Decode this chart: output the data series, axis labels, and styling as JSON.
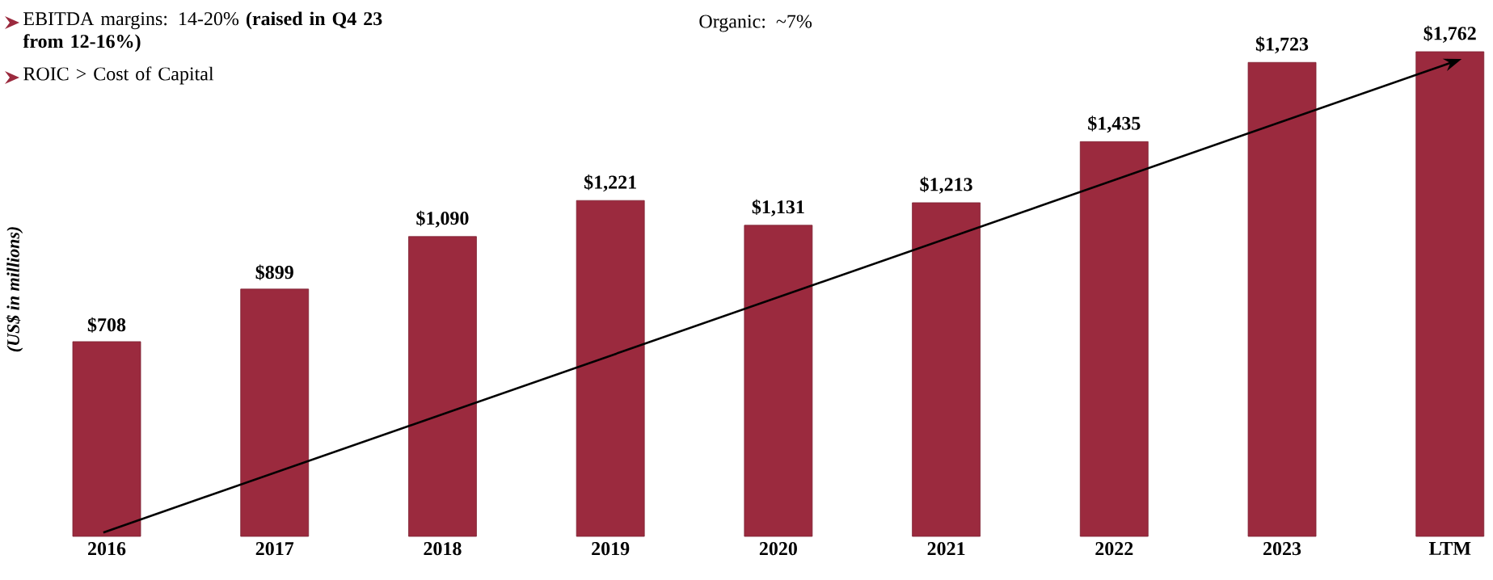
{
  "chart_data": {
    "type": "bar",
    "ylabel": "*(US$ in millions)*",
    "categories": [
      "2016",
      "2017",
      "2018",
      "2019",
      "2020",
      "2021",
      "2022",
      "2023",
      "LTM"
    ],
    "values": [
      708,
      899,
      1090,
      1221,
      1131,
      1213,
      1435,
      1723,
      1762
    ],
    "value_labels": [
      "$708",
      "$899",
      "$1,090",
      "$1,221",
      "$1,131",
      "$1,213",
      "$1,435",
      "$1,723",
      "$1,762"
    ],
    "color": "#9b2a3e",
    "annotations": [
      "EBITDA margins: 14-20% **(raised in Q4 23 from 12-16%)**",
      "ROIC > Cost of Capital",
      "Organic: ~7%"
    ]
  }
}
